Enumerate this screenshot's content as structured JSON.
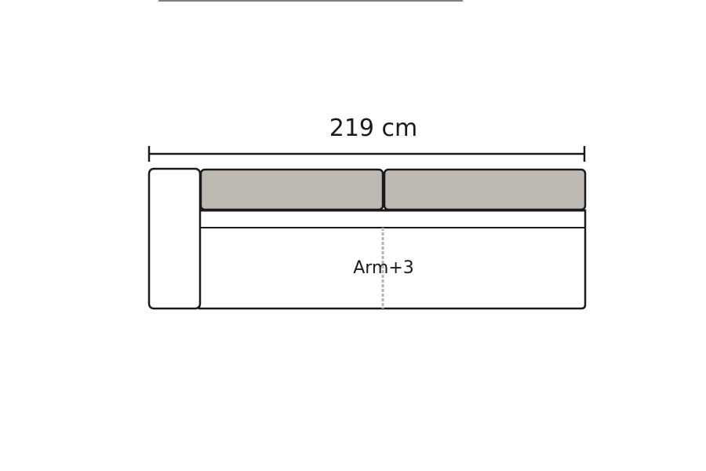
{
  "diagram": {
    "width_label": "219 cm",
    "module_label": "Arm+3",
    "colors": {
      "outline": "#1a1a1a",
      "cushion_fill": "#bfb9b4",
      "frame_fill": "#ffffff",
      "seam": "#b5b5b5"
    }
  }
}
